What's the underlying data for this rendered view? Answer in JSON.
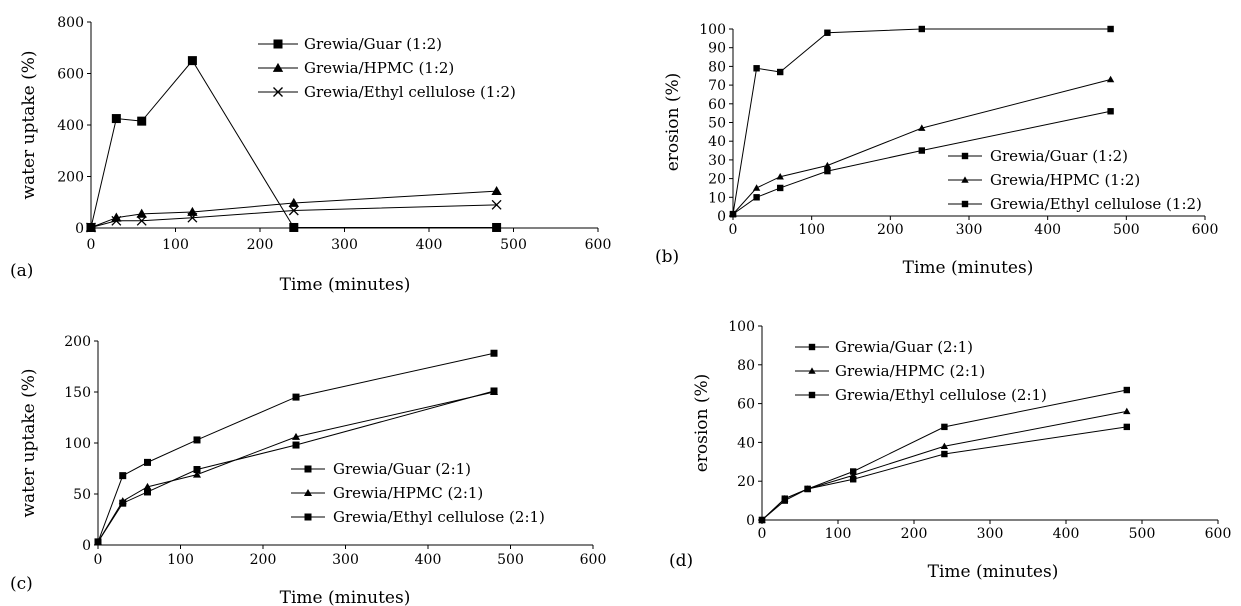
{
  "chart_data": [
    {
      "panel": "(a)",
      "type": "line",
      "xlabel": "Time  (minutes)",
      "ylabel": "water uptake (%)",
      "xlim": [
        0,
        600
      ],
      "ylim": [
        0,
        800
      ],
      "xticks": [
        0,
        100,
        200,
        300,
        400,
        500,
        600
      ],
      "yticks": [
        0,
        200,
        400,
        600,
        800
      ],
      "legend": "top-right",
      "series": [
        {
          "name": "Grewia/Guar (1:2)",
          "marker": "square",
          "x": [
            0,
            30,
            60,
            120,
            240,
            480
          ],
          "y": [
            2,
            425,
            415,
            650,
            2,
            2
          ]
        },
        {
          "name": "Grewia/HPMC (1:2)",
          "marker": "triangle",
          "x": [
            0,
            30,
            60,
            120,
            240,
            480
          ],
          "y": [
            2,
            40,
            55,
            62,
            97,
            143
          ]
        },
        {
          "name": "Grewia/Ethyl cellulose (1:2)",
          "marker": "x",
          "x": [
            0,
            30,
            60,
            120,
            240,
            480
          ],
          "y": [
            2,
            28,
            28,
            40,
            68,
            90
          ]
        }
      ]
    },
    {
      "panel": "(b)",
      "type": "line",
      "xlabel": "Time (minutes)",
      "ylabel": "erosion (%)",
      "xlim": [
        0,
        600
      ],
      "ylim": [
        0,
        100
      ],
      "xticks": [
        0,
        100,
        200,
        300,
        400,
        500,
        600
      ],
      "yticks": [
        0,
        10,
        20,
        30,
        40,
        50,
        60,
        70,
        80,
        90,
        100
      ],
      "legend": "bottom-right",
      "series": [
        {
          "name": "Grewia/Guar (1:2)",
          "marker": "square",
          "x": [
            0,
            30,
            60,
            120,
            240,
            480
          ],
          "y": [
            1,
            79,
            77,
            98,
            100,
            100
          ]
        },
        {
          "name": "Grewia/HPMC (1:2)",
          "marker": "triangle",
          "x": [
            0,
            30,
            60,
            120,
            240,
            480
          ],
          "y": [
            1,
            15,
            21,
            27,
            47,
            73
          ]
        },
        {
          "name": "Grewia/Ethyl cellulose (1:2)",
          "marker": "square",
          "x": [
            0,
            30,
            60,
            120,
            240,
            480
          ],
          "y": [
            1,
            10,
            15,
            24,
            35,
            56
          ]
        }
      ]
    },
    {
      "panel": "(c)",
      "type": "line",
      "xlabel": "Time (minutes)",
      "ylabel": "water uptake (%)",
      "xlim": [
        0,
        600
      ],
      "ylim": [
        0,
        200
      ],
      "xticks": [
        0,
        100,
        200,
        300,
        400,
        500,
        600
      ],
      "yticks": [
        0,
        50,
        100,
        150,
        200
      ],
      "legend": "bottom-right",
      "series": [
        {
          "name": "Grewia/Guar (2:1)",
          "marker": "square",
          "x": [
            0,
            30,
            60,
            120,
            240,
            480
          ],
          "y": [
            3,
            68,
            81,
            103,
            145,
            188
          ]
        },
        {
          "name": "Grewia/HPMC (2:1)",
          "marker": "triangle",
          "x": [
            0,
            30,
            60,
            120,
            240,
            480
          ],
          "y": [
            3,
            43,
            57,
            69,
            106,
            150
          ]
        },
        {
          "name": "Grewia/Ethyl cellulose (2:1)",
          "marker": "square",
          "x": [
            0,
            30,
            60,
            120,
            240,
            480
          ],
          "y": [
            3,
            41,
            52,
            74,
            98,
            151
          ]
        }
      ]
    },
    {
      "panel": "(d)",
      "type": "line",
      "xlabel": "Time (minutes)",
      "ylabel": "erosion (%)",
      "xlim": [
        0,
        600
      ],
      "ylim": [
        0,
        100
      ],
      "xticks": [
        0,
        100,
        200,
        300,
        400,
        500,
        600
      ],
      "yticks": [
        0,
        20,
        40,
        60,
        80,
        100
      ],
      "legend": "top-left",
      "series": [
        {
          "name": "Grewia/Guar (2:1)",
          "marker": "square",
          "x": [
            0,
            30,
            60,
            120,
            240,
            480
          ],
          "y": [
            0,
            11,
            16,
            25,
            48,
            67
          ]
        },
        {
          "name": "Grewia/HPMC (2:1)",
          "marker": "triangle",
          "x": [
            0,
            30,
            60,
            120,
            240,
            480
          ],
          "y": [
            0,
            11,
            16,
            23,
            38,
            56
          ]
        },
        {
          "name": "Grewia/Ethyl cellulose (2:1)",
          "marker": "square",
          "x": [
            0,
            30,
            60,
            120,
            240,
            480
          ],
          "y": [
            0,
            10,
            16,
            21,
            34,
            48
          ]
        }
      ]
    }
  ]
}
